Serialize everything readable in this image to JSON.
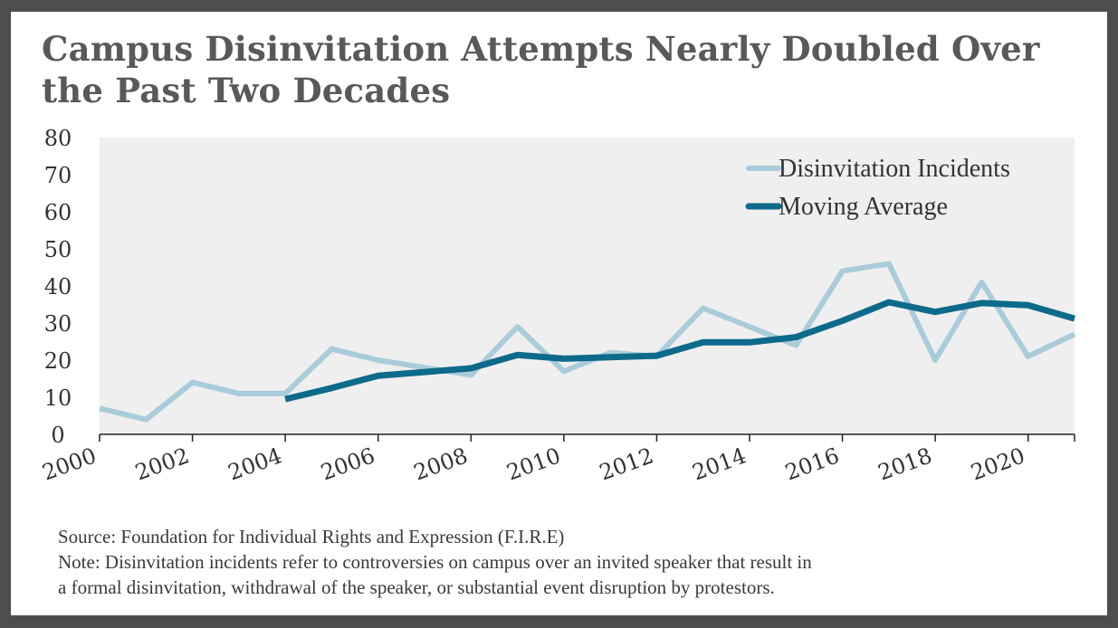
{
  "title": "Campus Disinvitation Attempts Nearly Doubled Over the Past Two Decades",
  "source": "Source: Foundation for Individual Rights and Expression (F.I.R.E)",
  "note_line1": "Note: Disinvitation incidents refer to controversies on campus over an invited speaker that result in",
  "note_line2": "a formal disinvitation, withdrawal of the speaker, or substantial event disruption by protestors.",
  "colors": {
    "incidents": "#a9ccdb",
    "moving_average": "#0d6a8a",
    "plot_bg": "#efefef"
  },
  "chart_data": {
    "type": "line",
    "title": "Campus Disinvitation Attempts Nearly Doubled Over the Past Two Decades",
    "xlabel": "",
    "ylabel": "",
    "xlim": [
      2000,
      2021
    ],
    "ylim": [
      0,
      80
    ],
    "yticks": [
      0,
      10,
      20,
      30,
      40,
      50,
      60,
      70,
      80
    ],
    "xticks": [
      2000,
      2002,
      2004,
      2006,
      2008,
      2010,
      2012,
      2014,
      2016,
      2018,
      2020
    ],
    "grid": false,
    "legend_position": "top-right",
    "series": [
      {
        "name": "Disinvitation Incidents",
        "x": [
          2000,
          2001,
          2002,
          2003,
          2004,
          2005,
          2006,
          2007,
          2008,
          2009,
          2010,
          2011,
          2012,
          2013,
          2014,
          2015,
          2016,
          2017,
          2018,
          2019,
          2020,
          2021
        ],
        "values": [
          7,
          4,
          14,
          11,
          11,
          23,
          20,
          18,
          16,
          29,
          17,
          22,
          21,
          34,
          29,
          24,
          44,
          46,
          20,
          41,
          21,
          27
        ]
      },
      {
        "name": "Moving Average",
        "x": [
          2004,
          2005,
          2006,
          2007,
          2008,
          2009,
          2010,
          2011,
          2012,
          2013,
          2014,
          2015,
          2016,
          2017,
          2018,
          2019,
          2020,
          2021
        ],
        "values": [
          9.5,
          12.5,
          15.8,
          16.8,
          17.8,
          21.4,
          20.4,
          20.8,
          21.2,
          24.8,
          24.8,
          26.2,
          30.6,
          35.6,
          33,
          35.4,
          34.8,
          31.2
        ]
      }
    ]
  }
}
